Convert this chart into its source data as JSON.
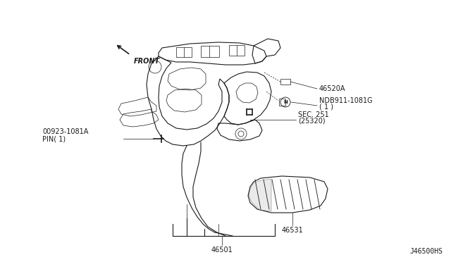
{
  "bg_color": "#ffffff",
  "line_color": "#1a1a1a",
  "gray_color": "#888888",
  "fig_width": 6.4,
  "fig_height": 3.72,
  "dpi": 100,
  "diagram_ref": "J46500HS",
  "labels": {
    "front": "FRONT",
    "part_46520A": "46520A",
    "part_NDB911_line1": "NDB911-1081G",
    "part_NDB911_line2": "( 1 )",
    "part_00923_line1": "00923-1081A",
    "part_00923_line2": "PIN( 1)",
    "part_SEC251_line1": "SEC. 251",
    "part_SEC251_line2": "(25320)",
    "part_46531": "46531",
    "part_46501": "46501"
  }
}
